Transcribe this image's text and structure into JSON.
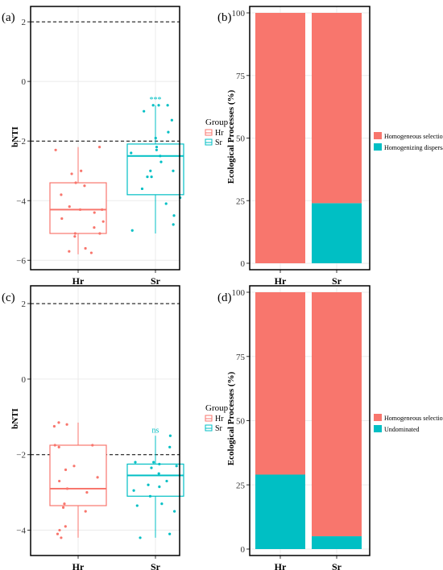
{
  "colors": {
    "hr": "#F8766D",
    "sr": "#00BFC4",
    "grid": "#ebebeb"
  },
  "chart_data": [
    {
      "panel": "(a)",
      "type": "box",
      "ylabel": "bNTI",
      "ylim": [
        -6.1,
        2.3
      ],
      "yticks": [
        2,
        0,
        -2,
        -4,
        -6
      ],
      "hlines": [
        2,
        -2
      ],
      "categories": [
        "Hr",
        "Sr"
      ],
      "legend": {
        "title": "Group",
        "entries": [
          "Hr",
          "Sr"
        ]
      },
      "series": [
        {
          "name": "Hr",
          "box": {
            "min": -5.8,
            "q1": -5.1,
            "median": -4.3,
            "q3": -3.4,
            "max": -2.2
          },
          "points": [
            -2.2,
            -2.3,
            -3.0,
            -3.1,
            -3.4,
            -3.5,
            -3.8,
            -4.2,
            -4.3,
            -4.3,
            -4.4,
            -4.6,
            -4.7,
            -4.9,
            -5.1,
            -5.1,
            -5.2,
            -5.6,
            -5.7,
            -5.75
          ]
        },
        {
          "name": "Sr",
          "signif": "***",
          "box": {
            "min": -5.1,
            "q1": -3.8,
            "median": -2.5,
            "q3": -2.1,
            "max": -0.8
          },
          "points": [
            -0.8,
            -0.8,
            -0.8,
            -1.0,
            -1.3,
            -1.7,
            -1.9,
            -2.2,
            -2.3,
            -2.4,
            -2.5,
            -2.7,
            -3.0,
            -3.0,
            -3.2,
            -3.2,
            -3.6,
            -3.9,
            -4.1,
            -4.5,
            -4.8,
            -5.0
          ]
        }
      ]
    },
    {
      "panel": "(b)",
      "type": "bar",
      "stacked": true,
      "ylabel": "Ecological Processes (%)",
      "ylim": [
        0,
        100
      ],
      "yticks": [
        0,
        25,
        50,
        75,
        100
      ],
      "categories": [
        "Hr",
        "Sr"
      ],
      "series": [
        {
          "name": "Homogeneous selection",
          "values": [
            100,
            76
          ]
        },
        {
          "name": "Homogenizing dispersal",
          "values": [
            0,
            24
          ]
        }
      ]
    },
    {
      "panel": "(c)",
      "type": "box",
      "ylabel": "bNTI",
      "ylim": [
        -4.5,
        2.3
      ],
      "yticks": [
        2,
        0,
        -2,
        -4
      ],
      "hlines": [
        2,
        -2
      ],
      "categories": [
        "Hr",
        "Sr"
      ],
      "legend": {
        "title": "Group",
        "entries": [
          "Hr",
          "Sr"
        ]
      },
      "series": [
        {
          "name": "Hr",
          "box": {
            "min": -4.2,
            "q1": -3.35,
            "median": -2.9,
            "q3": -1.75,
            "max": -1.15
          },
          "points": [
            -1.15,
            -1.2,
            -1.25,
            -1.75,
            -1.75,
            -1.8,
            -2.3,
            -2.4,
            -2.6,
            -2.7,
            -2.9,
            -3.0,
            -3.3,
            -3.4,
            -3.5,
            -3.9,
            -4.0,
            -4.1,
            -4.2
          ]
        },
        {
          "name": "Sr",
          "signif": "ns",
          "box": {
            "min": -4.2,
            "q1": -3.1,
            "median": -2.55,
            "q3": -2.25,
            "max": -1.5
          },
          "points": [
            -1.5,
            -1.8,
            -2.2,
            -2.2,
            -2.25,
            -2.3,
            -2.35,
            -2.5,
            -2.7,
            -2.8,
            -2.85,
            -2.95,
            -3.1,
            -3.3,
            -3.35,
            -3.5,
            -4.1,
            -4.2
          ]
        }
      ]
    },
    {
      "panel": "(d)",
      "type": "bar",
      "stacked": true,
      "ylabel": "Ecological Processes (%)",
      "ylim": [
        0,
        100
      ],
      "yticks": [
        0,
        25,
        50,
        75,
        100
      ],
      "categories": [
        "Hr",
        "Sr"
      ],
      "series": [
        {
          "name": "Homogeneous selection",
          "values": [
            71,
            95
          ]
        },
        {
          "name": "Undominated",
          "values": [
            29,
            5
          ]
        }
      ]
    }
  ]
}
